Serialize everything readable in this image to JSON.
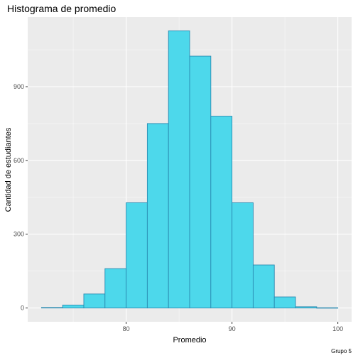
{
  "chart_data": {
    "type": "bar",
    "title": "Histograma de promedio",
    "xlabel": "Promedio",
    "ylabel": "Cantidad de estudiantes",
    "caption": "Grupo 5",
    "bins": [
      {
        "x0": 72,
        "x1": 74,
        "count": 2
      },
      {
        "x0": 74,
        "x1": 76,
        "count": 12
      },
      {
        "x0": 76,
        "x1": 78,
        "count": 57
      },
      {
        "x0": 78,
        "x1": 80,
        "count": 160
      },
      {
        "x0": 80,
        "x1": 82,
        "count": 428
      },
      {
        "x0": 82,
        "x1": 84,
        "count": 750
      },
      {
        "x0": 84,
        "x1": 86,
        "count": 1127
      },
      {
        "x0": 86,
        "x1": 88,
        "count": 1024
      },
      {
        "x0": 88,
        "x1": 90,
        "count": 780
      },
      {
        "x0": 90,
        "x1": 92,
        "count": 428
      },
      {
        "x0": 92,
        "x1": 94,
        "count": 175
      },
      {
        "x0": 94,
        "x1": 96,
        "count": 45
      },
      {
        "x0": 96,
        "x1": 98,
        "count": 5
      },
      {
        "x0": 98,
        "x1": 100,
        "count": 1
      }
    ],
    "xticks": [
      80,
      90,
      100
    ],
    "yticks": [
      0,
      300,
      600,
      900
    ],
    "xlim": [
      70.7,
      101.3
    ],
    "ylim": [
      -56,
      1183
    ],
    "colors": {
      "panel": "#ebebeb",
      "grid_major": "#ffffff",
      "bar_fill": "#4dd8eb",
      "bar_stroke": "#2a8bb2"
    },
    "grid": true,
    "legend": "none"
  }
}
